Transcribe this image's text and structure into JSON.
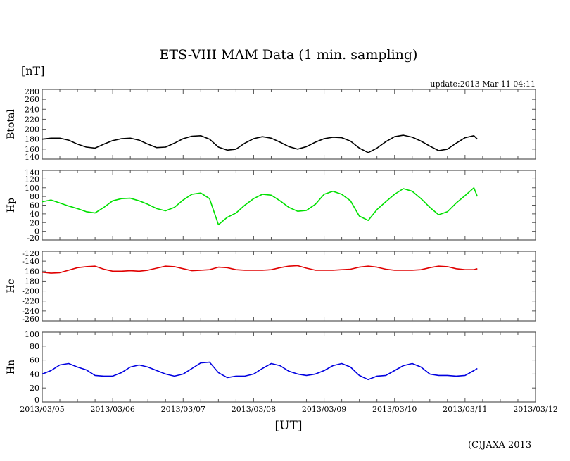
{
  "chart_data": {
    "type": "line",
    "title": "ETS-VIII MAM Data (1 min. sampling)",
    "unit_label": "[nT]",
    "update_text": "update:2013 Mar 11 04:11",
    "xlabel": "[UT]",
    "copyright": "(C)JAXA 2013",
    "x_unit": "days since 2013/03/05 00:00 UT",
    "x_tick_labels": [
      "2013/03/05",
      "2013/03/06",
      "2013/03/07",
      "2013/03/08",
      "2013/03/09",
      "2013/03/10",
      "2013/03/11",
      "2013/03/12"
    ],
    "xlim": [
      0,
      7
    ],
    "x_step": 0.125,
    "x_end": 6.174,
    "panels": [
      {
        "name": "Btotal",
        "color": "#000000",
        "ylim": [
          140,
          280
        ],
        "yticks": [
          140,
          160,
          180,
          200,
          220,
          240,
          260,
          280
        ],
        "values": [
          180,
          182,
          182,
          178,
          170,
          164,
          162,
          170,
          177,
          181,
          182,
          178,
          170,
          163,
          164,
          172,
          181,
          186,
          187,
          180,
          164,
          158,
          160,
          172,
          181,
          185,
          182,
          174,
          165,
          160,
          165,
          174,
          181,
          184,
          183,
          176,
          162,
          153,
          162,
          175,
          185,
          188,
          184,
          176,
          166,
          157,
          160,
          172,
          183,
          187,
          180
        ]
      },
      {
        "name": "Hp",
        "color": "#00e000",
        "ylim": [
          -20,
          140
        ],
        "yticks": [
          -20,
          0,
          20,
          40,
          60,
          80,
          100,
          120,
          140
        ],
        "values": [
          68,
          72,
          65,
          58,
          52,
          45,
          42,
          55,
          70,
          75,
          76,
          70,
          62,
          52,
          47,
          55,
          72,
          85,
          88,
          75,
          15,
          32,
          42,
          60,
          75,
          85,
          83,
          70,
          55,
          46,
          48,
          62,
          85,
          92,
          85,
          70,
          35,
          25,
          50,
          68,
          85,
          98,
          92,
          75,
          55,
          38,
          45,
          65,
          82,
          100,
          80
        ]
      },
      {
        "name": "Hc",
        "color": "#e00000",
        "ylim": [
          -260,
          -120
        ],
        "yticks": [
          -260,
          -240,
          -220,
          -200,
          -180,
          -160,
          -140,
          -120
        ],
        "values": [
          -162,
          -164,
          -163,
          -158,
          -153,
          -151,
          -150,
          -156,
          -160,
          -160,
          -159,
          -160,
          -158,
          -154,
          -150,
          -151,
          -155,
          -159,
          -158,
          -157,
          -152,
          -153,
          -157,
          -158,
          -158,
          -158,
          -157,
          -153,
          -150,
          -149,
          -154,
          -158,
          -158,
          -158,
          -157,
          -156,
          -152,
          -150,
          -152,
          -156,
          -158,
          -158,
          -158,
          -157,
          -153,
          -150,
          -151,
          -155,
          -157,
          -157,
          -155
        ]
      },
      {
        "name": "Hn",
        "color": "#0000e0",
        "ylim": [
          0,
          100
        ],
        "yticks": [
          0,
          20,
          40,
          60,
          80,
          100
        ],
        "values": [
          40,
          45,
          53,
          55,
          50,
          46,
          38,
          37,
          37,
          42,
          50,
          53,
          50,
          45,
          40,
          37,
          40,
          48,
          56,
          57,
          42,
          35,
          37,
          37,
          40,
          48,
          55,
          52,
          44,
          40,
          38,
          40,
          45,
          52,
          55,
          50,
          38,
          32,
          37,
          38,
          45,
          52,
          55,
          50,
          40,
          38,
          38,
          37,
          38,
          45,
          48
        ]
      }
    ]
  }
}
